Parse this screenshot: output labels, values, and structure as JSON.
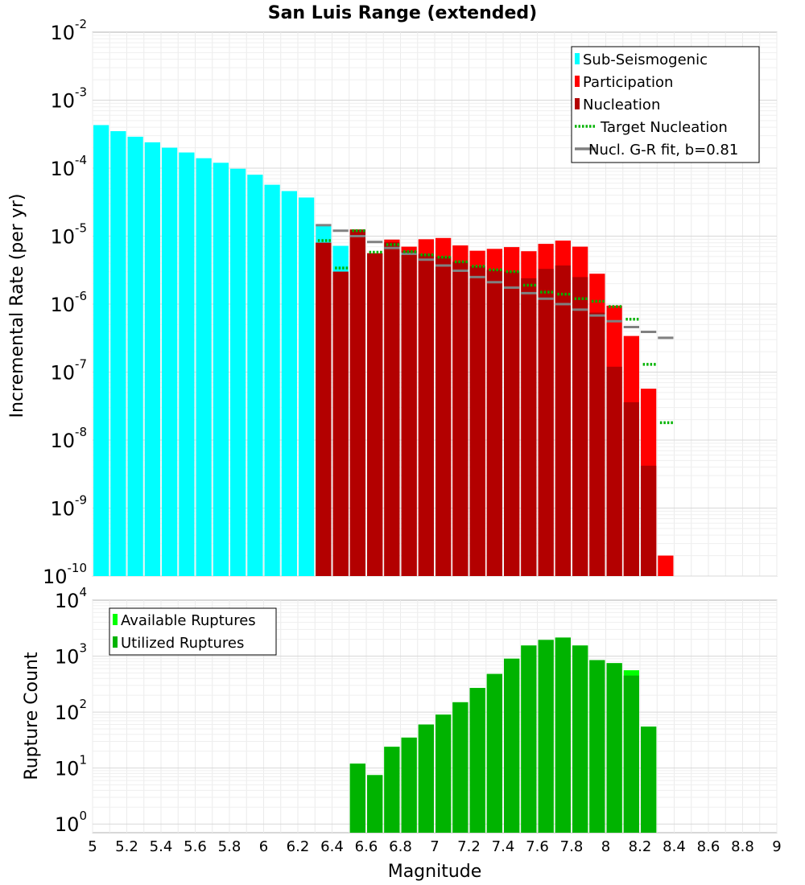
{
  "chart_data": [
    {
      "type": "bar",
      "title": "San Luis Range (extended)",
      "xlabel": "",
      "ylabel": "Incremental Rate (per yr)",
      "yscale": "log",
      "xlim": [
        5,
        9
      ],
      "ylim": [
        1e-10,
        0.01
      ],
      "legend_position": "top-right",
      "y_tick_exponents": [
        "-10",
        "-9",
        "-8",
        "-7",
        "-6",
        "-5",
        "-4",
        "-3",
        "-2"
      ],
      "legend": [
        {
          "label": "Sub-Seismogenic",
          "color": "#00ffff",
          "style": "bar"
        },
        {
          "label": "Participation",
          "color": "#ff0000",
          "style": "bar"
        },
        {
          "label": "Nucleation",
          "color": "#b30000",
          "style": "bar"
        },
        {
          "label": "Target Nucleation",
          "color": "#00b300",
          "style": "dotted"
        },
        {
          "label": "Nucl. G-R fit, b=0.81",
          "color": "#808080",
          "style": "line"
        }
      ],
      "series": [
        {
          "name": "Sub-Seismogenic",
          "color": "#00ffff",
          "x": [
            5.05,
            5.15,
            5.25,
            5.35,
            5.45,
            5.55,
            5.65,
            5.75,
            5.85,
            5.95,
            6.05,
            6.15,
            6.25,
            6.35,
            6.45
          ],
          "values": [
            0.00043,
            0.00035,
            0.00029,
            0.00024,
            0.0002,
            0.00017,
            0.00014,
            0.00012,
            9.8e-05,
            8e-05,
            5.7e-05,
            4.6e-05,
            3.7e-05,
            1.45e-05,
            7.2e-06
          ]
        },
        {
          "name": "Participation",
          "color": "#ff0000",
          "x": [
            6.35,
            6.45,
            6.55,
            6.65,
            6.75,
            6.85,
            6.95,
            7.05,
            7.15,
            7.25,
            7.35,
            7.45,
            7.55,
            7.65,
            7.75,
            7.85,
            7.95,
            8.05,
            8.15,
            8.25,
            8.35
          ],
          "values": [
            8e-06,
            3e-06,
            1.25e-05,
            5.6e-06,
            8.9e-06,
            7e-06,
            9e-06,
            9.4e-06,
            7.3e-06,
            6.1e-06,
            6.5e-06,
            6.9e-06,
            6e-06,
            7.7e-06,
            8.6e-06,
            7e-06,
            2.8e-06,
            9.5e-07,
            3.4e-07,
            5.7e-08,
            2e-10
          ]
        },
        {
          "name": "Nucleation",
          "color": "#b30000",
          "x": [
            6.35,
            6.45,
            6.55,
            6.65,
            6.75,
            6.85,
            6.95,
            7.05,
            7.15,
            7.25,
            7.35,
            7.45,
            7.55,
            7.65,
            7.75,
            7.85,
            7.95,
            8.05,
            8.15,
            8.25
          ],
          "values": [
            8e-06,
            3e-06,
            1.25e-05,
            5.6e-06,
            8.1e-06,
            6e-06,
            5.5e-06,
            5e-06,
            4.2e-06,
            3.6e-06,
            3.2e-06,
            3e-06,
            2.4e-06,
            3.3e-06,
            3.7e-06,
            2.5e-06,
            7.5e-07,
            1.2e-07,
            3.6e-08,
            4.2e-09
          ]
        },
        {
          "name": "Target Nucleation",
          "color": "#00b300",
          "x": [
            6.35,
            6.45,
            6.55,
            6.65,
            6.75,
            6.85,
            6.95,
            7.05,
            7.15,
            7.25,
            7.35,
            7.45,
            7.55,
            7.65,
            7.75,
            7.85,
            7.95,
            8.05,
            8.15,
            8.25,
            8.35
          ],
          "values": [
            8.6e-06,
            3.4e-06,
            1.2e-05,
            5.8e-06,
            7.5e-06,
            5.9e-06,
            5.3e-06,
            4.9e-06,
            4.2e-06,
            3.6e-06,
            3.2e-06,
            3e-06,
            1.9e-06,
            1.5e-06,
            1.4e-06,
            1.2e-06,
            1.1e-06,
            9.2e-07,
            6e-07,
            1.3e-07,
            1.8e-08
          ]
        },
        {
          "name": "Nucl. G-R fit, b=0.81",
          "color": "#808080",
          "x": [
            6.35,
            6.45,
            6.55,
            6.65,
            6.75,
            6.85,
            6.95,
            7.05,
            7.15,
            7.25,
            7.35,
            7.45,
            7.55,
            7.65,
            7.75,
            7.85,
            7.95,
            8.05,
            8.15,
            8.25,
            8.35
          ],
          "values": [
            1.45e-05,
            1.2e-05,
            1e-05,
            8.2e-06,
            6.7e-06,
            5.5e-06,
            4.5e-06,
            3.7e-06,
            3.1e-06,
            2.5e-06,
            2.1e-06,
            1.75e-06,
            1.45e-06,
            1.2e-06,
            1e-06,
            8.3e-07,
            6.8e-07,
            5.6e-07,
            4.6e-07,
            3.9e-07,
            3.2e-07
          ]
        }
      ]
    },
    {
      "type": "bar",
      "title": "",
      "xlabel": "Magnitude",
      "ylabel": "Rupture Count",
      "yscale": "log",
      "xlim": [
        5,
        9
      ],
      "ylim": [
        0.7,
        10000
      ],
      "legend_position": "top-left",
      "x_ticks": [
        "5",
        "5.2",
        "5.4",
        "5.6",
        "5.8",
        "6",
        "6.2",
        "6.4",
        "6.6",
        "6.8",
        "7",
        "7.2",
        "7.4",
        "7.6",
        "7.8",
        "8",
        "8.2",
        "8.4",
        "8.6",
        "8.8",
        "9"
      ],
      "y_tick_exponents": [
        "0",
        "1",
        "2",
        "3",
        "4"
      ],
      "legend": [
        {
          "label": "Available Ruptures",
          "color": "#00ff00",
          "style": "bar"
        },
        {
          "label": "Utilized Ruptures",
          "color": "#00b300",
          "style": "bar"
        }
      ],
      "series": [
        {
          "name": "Available Ruptures",
          "color": "#00ff00",
          "x": [
            6.55,
            6.65,
            6.75,
            6.85,
            6.95,
            7.05,
            7.15,
            7.25,
            7.35,
            7.45,
            7.55,
            7.65,
            7.75,
            7.85,
            7.95,
            8.05,
            8.15,
            8.25
          ],
          "values": [
            12,
            7.5,
            24,
            35,
            60,
            90,
            150,
            270,
            480,
            900,
            1550,
            1950,
            2150,
            1550,
            850,
            750,
            560,
            55
          ]
        },
        {
          "name": "Utilized Ruptures",
          "color": "#00b300",
          "x": [
            6.55,
            6.65,
            6.75,
            6.85,
            6.95,
            7.05,
            7.15,
            7.25,
            7.35,
            7.45,
            7.55,
            7.65,
            7.75,
            7.85,
            7.95,
            8.05,
            8.15,
            8.25
          ],
          "values": [
            12,
            7.5,
            24,
            35,
            60,
            90,
            150,
            270,
            480,
            900,
            1550,
            1950,
            2150,
            1550,
            850,
            750,
            450,
            55
          ]
        }
      ]
    }
  ]
}
